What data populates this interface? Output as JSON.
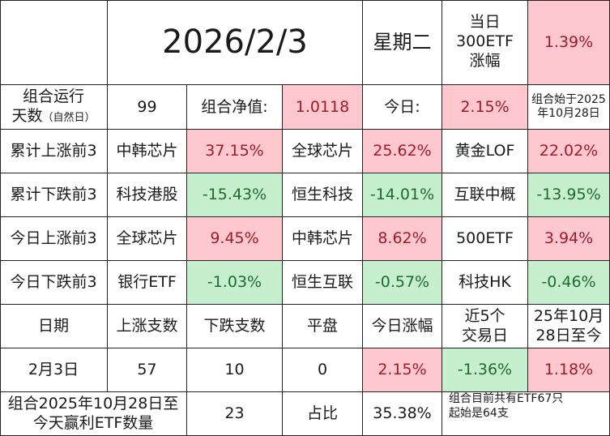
{
  "header": {
    "date": "2026/2/3",
    "weekday": "星期二",
    "etf300_label_line1": "当日",
    "etf300_label_line2": "300ETF",
    "etf300_label_line3": "涨幅",
    "etf300_value": "1.39%"
  },
  "summary": {
    "days_label_line1": "组合运行",
    "days_label_line2": "天数",
    "days_label_note": "（自然日）",
    "days_value": "99",
    "nav_label": "组合净值:",
    "nav_value": "1.0118",
    "today_label": "今日:",
    "today_value": "2.15%",
    "start_note_line1": "组合始于2025",
    "start_note_line2": "年10月28日"
  },
  "rankings": [
    {
      "label": "累计上涨前3",
      "items": [
        {
          "name": "中韩芯片",
          "value": "37.15%"
        },
        {
          "name": "全球芯片",
          "value": "25.62%"
        },
        {
          "name": "黄金LOF",
          "value": "22.02%"
        }
      ]
    },
    {
      "label": "累计下跌前3",
      "items": [
        {
          "name": "科技港股",
          "value": "-15.43%"
        },
        {
          "name": "恒生科技",
          "value": "-14.01%"
        },
        {
          "name": "互联中概",
          "value": "-13.95%"
        }
      ]
    },
    {
      "label": "今日上涨前3",
      "items": [
        {
          "name": "全球芯片",
          "value": "9.45%"
        },
        {
          "name": "中韩芯片",
          "value": "8.62%"
        },
        {
          "name": "500ETF",
          "value": "3.94%"
        }
      ]
    },
    {
      "label": "今日下跌前3",
      "items": [
        {
          "name": "银行ETF",
          "value": "-1.03%"
        },
        {
          "name": "恒生互联",
          "value": "-0.57%"
        },
        {
          "name": "科技HK",
          "value": "-0.46%"
        }
      ]
    }
  ],
  "stats": {
    "headers": {
      "date": "日期",
      "up_count": "上涨支数",
      "down_count": "下跌支数",
      "flat": "平盘",
      "today_change": "今日涨幅",
      "last5_line1": "近5个",
      "last5_line2": "交易日",
      "since_line1": "25年10月",
      "since_line2": "28日至今"
    },
    "row": {
      "date": "2月3日",
      "up_count": "57",
      "down_count": "10",
      "flat": "0",
      "today_change": "2.15%",
      "last5": "-1.36%",
      "since": "1.18%"
    }
  },
  "footer": {
    "profit_label_line1": "组合2025年10月28日至",
    "profit_label_line2": "今天赢利ETF数量",
    "profit_count": "23",
    "ratio_label": "占比",
    "ratio_value": "35.38%",
    "note_line1": "组合目前共有ETF67只",
    "note_line2": "起始是64支"
  },
  "colors": {
    "positive_bg": "#ffc7ce",
    "positive_text": "#9c1c2a",
    "negative_bg": "#c6efce",
    "negative_text": "#1e6b2f"
  }
}
